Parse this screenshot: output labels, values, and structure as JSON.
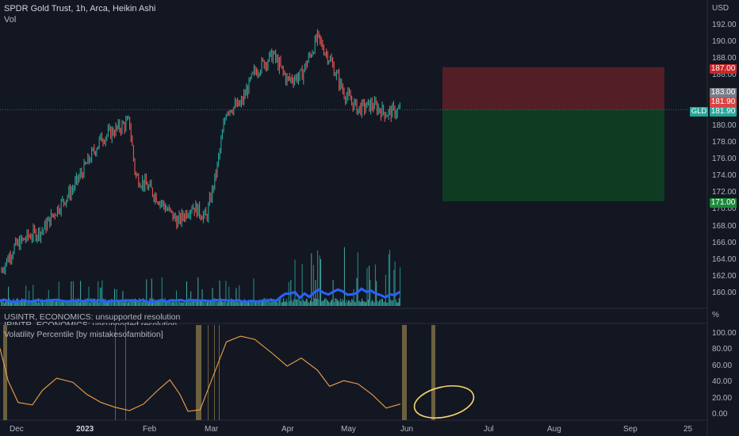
{
  "header": {
    "title": "SPDR Gold Trust, 1h, Arca, Heikin Ashi",
    "volume_label": "Vol",
    "currency": "USD",
    "percent_unit": "%"
  },
  "indicators": {
    "line1": "USINTR, ECONOMICS: unsupported resolution",
    "line2": "IRINTR, ECONOMICS: unsupported resolution",
    "vol_percentile": "Volatility Percentile [by mistakesofambition]"
  },
  "symbol_tag": "GLD",
  "price_tags": {
    "stop": "187.00",
    "entry_top": "183.00",
    "entry": "181.90",
    "current": "181.90",
    "target": "171.00"
  },
  "price_ticks": [
    "192.00",
    "190.00",
    "188.00",
    "186.00",
    "184.00",
    "182.00",
    "180.00",
    "178.00",
    "176.00",
    "174.00",
    "172.00",
    "170.00",
    "168.00",
    "166.00",
    "164.00",
    "162.00",
    "160.00"
  ],
  "pct_ticks": [
    "100.00",
    "80.00",
    "60.00",
    "40.00",
    "20.00",
    "0.00"
  ],
  "time_ticks": [
    "Dec",
    "2023",
    "Feb",
    "Mar",
    "Apr",
    "May",
    "Jun",
    "Jul",
    "Aug",
    "Sep",
    "25"
  ],
  "colors": {
    "background": "#131722",
    "up": "#26a69a",
    "down": "#ef5350",
    "volume_ma": "#2962ff",
    "volatility_line": "#f0a04b",
    "stop_zone": "#5b1f27",
    "target_zone": "#0f3d24",
    "highlight_bars": "#8a7a4a",
    "annotation": "#f5d76e"
  },
  "chart_data": [
    {
      "type": "candlestick",
      "title": "SPDR Gold Trust, 1h, Arca, Heikin Ashi",
      "ylim": [
        159,
        193
      ],
      "x": [
        "Dec",
        "Jan",
        "Feb",
        "Mar",
        "Apr",
        "May",
        "Jun"
      ],
      "close_path": [
        {
          "x": "2022-11-28",
          "y": 162.5
        },
        {
          "x": "2022-12-05",
          "y": 165.5
        },
        {
          "x": "2022-12-12",
          "y": 166.8
        },
        {
          "x": "2022-12-19",
          "y": 167.5
        },
        {
          "x": "2022-12-26",
          "y": 170.0
        },
        {
          "x": "2023-01-03",
          "y": 172.5
        },
        {
          "x": "2023-01-10",
          "y": 175.5
        },
        {
          "x": "2023-01-17",
          "y": 178.5
        },
        {
          "x": "2023-01-24",
          "y": 179.5
        },
        {
          "x": "2023-01-31",
          "y": 180.5
        },
        {
          "x": "2023-02-03",
          "y": 174.0
        },
        {
          "x": "2023-02-10",
          "y": 172.5
        },
        {
          "x": "2023-02-17",
          "y": 170.5
        },
        {
          "x": "2023-02-24",
          "y": 168.5
        },
        {
          "x": "2023-03-03",
          "y": 170.5
        },
        {
          "x": "2023-03-10",
          "y": 169.0
        },
        {
          "x": "2023-03-15",
          "y": 174.5
        },
        {
          "x": "2023-03-20",
          "y": 182.0
        },
        {
          "x": "2023-03-27",
          "y": 182.5
        },
        {
          "x": "2023-04-03",
          "y": 186.5
        },
        {
          "x": "2023-04-12",
          "y": 188.5
        },
        {
          "x": "2023-04-19",
          "y": 185.5
        },
        {
          "x": "2023-04-26",
          "y": 186.0
        },
        {
          "x": "2023-05-04",
          "y": 190.5
        },
        {
          "x": "2023-05-10",
          "y": 188.0
        },
        {
          "x": "2023-05-17",
          "y": 184.0
        },
        {
          "x": "2023-05-24",
          "y": 182.0
        },
        {
          "x": "2023-05-31",
          "y": 182.5
        },
        {
          "x": "2023-06-07",
          "y": 181.5
        },
        {
          "x": "2023-06-14",
          "y": 181.9
        }
      ]
    },
    {
      "type": "line",
      "title": "Volatility Percentile [by mistakesofambition]",
      "ylim": [
        0,
        100
      ],
      "x": [
        "Dec",
        "2023",
        "Feb",
        "Mar",
        "Apr",
        "May",
        "Jun"
      ],
      "series": [
        {
          "values_path": [
            {
              "x": "2022-11-28",
              "y": 82
            },
            {
              "x": "2022-12-02",
              "y": 42
            },
            {
              "x": "2022-12-07",
              "y": 15
            },
            {
              "x": "2022-12-14",
              "y": 12
            },
            {
              "x": "2022-12-19",
              "y": 30
            },
            {
              "x": "2022-12-26",
              "y": 45
            },
            {
              "x": "2023-01-03",
              "y": 40
            },
            {
              "x": "2023-01-10",
              "y": 25
            },
            {
              "x": "2023-01-17",
              "y": 15
            },
            {
              "x": "2023-01-24",
              "y": 9
            },
            {
              "x": "2023-01-31",
              "y": 5
            },
            {
              "x": "2023-02-07",
              "y": 13
            },
            {
              "x": "2023-02-14",
              "y": 30
            },
            {
              "x": "2023-02-20",
              "y": 43
            },
            {
              "x": "2023-02-25",
              "y": 25
            },
            {
              "x": "2023-03-01",
              "y": 4
            },
            {
              "x": "2023-03-07",
              "y": 6
            },
            {
              "x": "2023-03-13",
              "y": 45
            },
            {
              "x": "2023-03-20",
              "y": 90
            },
            {
              "x": "2023-03-27",
              "y": 97
            },
            {
              "x": "2023-04-03",
              "y": 93
            },
            {
              "x": "2023-04-12",
              "y": 75
            },
            {
              "x": "2023-04-19",
              "y": 60
            },
            {
              "x": "2023-04-26",
              "y": 70
            },
            {
              "x": "2023-05-04",
              "y": 55
            },
            {
              "x": "2023-05-10",
              "y": 35
            },
            {
              "x": "2023-05-17",
              "y": 42
            },
            {
              "x": "2023-05-24",
              "y": 38
            },
            {
              "x": "2023-05-31",
              "y": 25
            },
            {
              "x": "2023-06-07",
              "y": 8
            },
            {
              "x": "2023-06-14",
              "y": 13
            }
          ]
        }
      ]
    }
  ]
}
